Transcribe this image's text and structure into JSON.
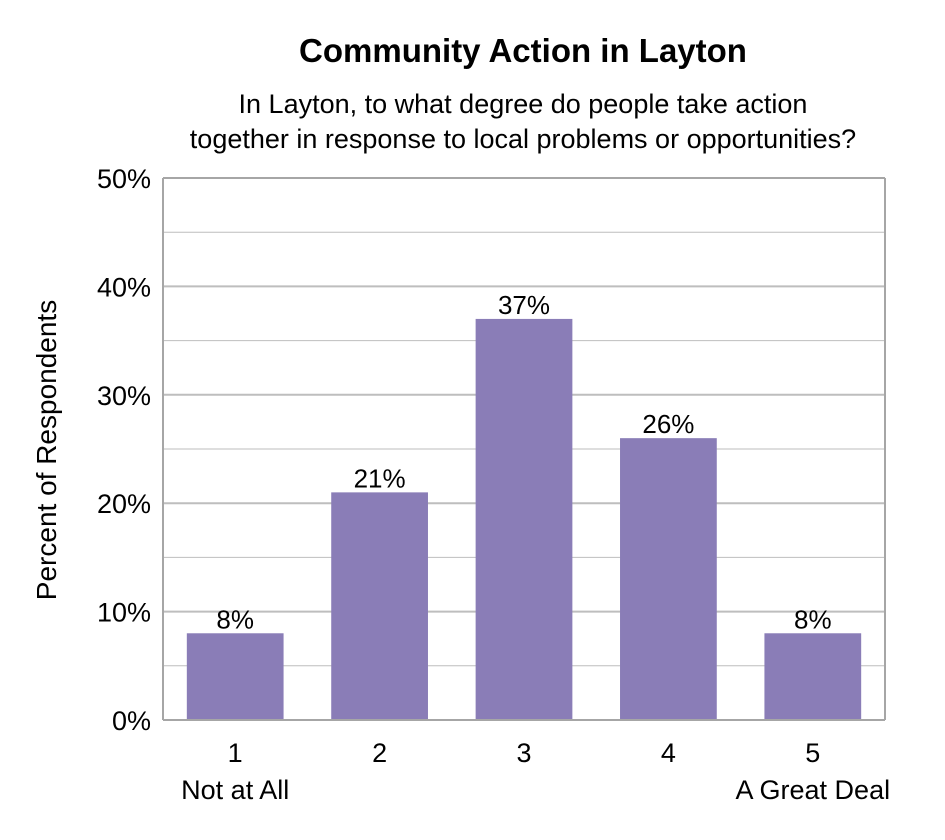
{
  "chart_data": {
    "type": "bar",
    "title": "Community Action in Layton",
    "subtitle_lines": [
      "In Layton, to what degree do people take action",
      "together in response to local problems or opportunities?"
    ],
    "ylabel": "Percent of Respondents",
    "xlabel": "",
    "categories": [
      "1",
      "2",
      "3",
      "4",
      "5"
    ],
    "category_sublabels": [
      "Not at All",
      "",
      "",
      "",
      "A Great Deal"
    ],
    "values": [
      8,
      21,
      37,
      26,
      8
    ],
    "value_labels": [
      "8%",
      "21%",
      "37%",
      "26%",
      "8%"
    ],
    "ylim": [
      0,
      50
    ],
    "yticks": [
      0,
      10,
      20,
      30,
      40,
      50
    ],
    "ytick_labels": [
      "0%",
      "10%",
      "20%",
      "30%",
      "40%",
      "50%"
    ],
    "minor_gridlines_step": 5,
    "grid": true,
    "legend": "none",
    "colors": {
      "bar": "#8A7DB7",
      "grid": "#BEBEBE",
      "axis": "#A6A6A6"
    }
  }
}
